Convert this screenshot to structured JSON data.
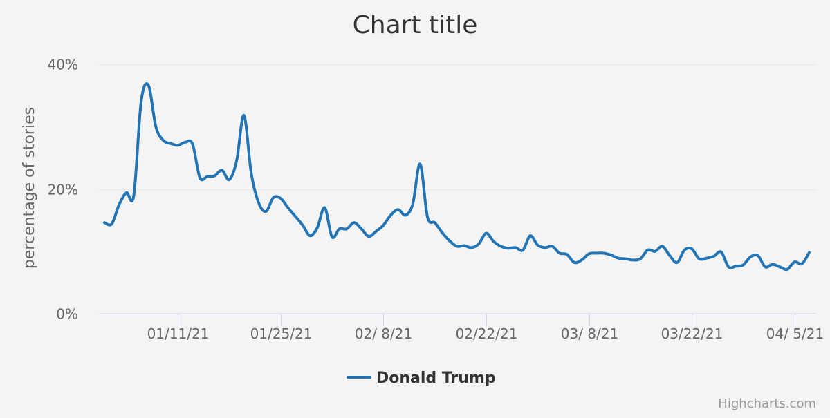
{
  "chart_data": {
    "type": "line",
    "title": "Chart title",
    "ylabel": "percentage of stories",
    "ylim": [
      0,
      40
    ],
    "yticks": [
      0,
      20,
      40
    ],
    "ytick_labels": [
      "0%",
      "20%",
      "40%"
    ],
    "xlim": [
      "2021-01-01",
      "2021-04-07"
    ],
    "xticks": [
      "2021-01-11",
      "2021-01-25",
      "2021-02-08",
      "2021-02-22",
      "2021-03-08",
      "2021-03-22",
      "2021-04-05"
    ],
    "xtick_labels": [
      "01/11/21",
      "01/25/21",
      "02/ 8/21",
      "02/22/21",
      "03/ 8/21",
      "03/22/21",
      "04/ 5/21"
    ],
    "grid": true,
    "legend": "bottom-center",
    "series": [
      {
        "name": "Donald Trump",
        "color": "#2274b5",
        "x": [
          "2021-01-01",
          "2021-01-02",
          "2021-01-03",
          "2021-01-04",
          "2021-01-05",
          "2021-01-06",
          "2021-01-07",
          "2021-01-08",
          "2021-01-09",
          "2021-01-10",
          "2021-01-11",
          "2021-01-12",
          "2021-01-13",
          "2021-01-14",
          "2021-01-15",
          "2021-01-16",
          "2021-01-17",
          "2021-01-18",
          "2021-01-19",
          "2021-01-20",
          "2021-01-21",
          "2021-01-22",
          "2021-01-23",
          "2021-01-24",
          "2021-01-25",
          "2021-01-26",
          "2021-01-27",
          "2021-01-28",
          "2021-01-29",
          "2021-01-30",
          "2021-01-31",
          "2021-02-01",
          "2021-02-02",
          "2021-02-03",
          "2021-02-04",
          "2021-02-05",
          "2021-02-06",
          "2021-02-07",
          "2021-02-08",
          "2021-02-09",
          "2021-02-10",
          "2021-02-11",
          "2021-02-12",
          "2021-02-13",
          "2021-02-14",
          "2021-02-15",
          "2021-02-16",
          "2021-02-17",
          "2021-02-18",
          "2021-02-19",
          "2021-02-20",
          "2021-02-21",
          "2021-02-22",
          "2021-02-23",
          "2021-02-24",
          "2021-02-25",
          "2021-02-26",
          "2021-02-27",
          "2021-02-28",
          "2021-03-01",
          "2021-03-02",
          "2021-03-03",
          "2021-03-04",
          "2021-03-05",
          "2021-03-06",
          "2021-03-07",
          "2021-03-08",
          "2021-03-09",
          "2021-03-10",
          "2021-03-11",
          "2021-03-12",
          "2021-03-13",
          "2021-03-14",
          "2021-03-15",
          "2021-03-16",
          "2021-03-17",
          "2021-03-18",
          "2021-03-19",
          "2021-03-20",
          "2021-03-21",
          "2021-03-22",
          "2021-03-23",
          "2021-03-24",
          "2021-03-25",
          "2021-03-26",
          "2021-03-27",
          "2021-03-28",
          "2021-03-29",
          "2021-03-30",
          "2021-03-31",
          "2021-04-01",
          "2021-04-02",
          "2021-04-03",
          "2021-04-04",
          "2021-04-05",
          "2021-04-06",
          "2021-04-07"
        ],
        "values": [
          14.6,
          14.4,
          17.5,
          19.4,
          19.0,
          34.0,
          36.6,
          30.0,
          27.8,
          27.3,
          27.0,
          27.5,
          27.2,
          21.8,
          22.0,
          22.1,
          23.0,
          21.5,
          24.5,
          31.8,
          22.5,
          17.8,
          16.4,
          18.6,
          18.5,
          17.0,
          15.6,
          14.2,
          12.5,
          13.8,
          17.0,
          12.3,
          13.6,
          13.6,
          14.6,
          13.6,
          12.4,
          13.2,
          14.2,
          15.8,
          16.7,
          15.8,
          17.6,
          24.0,
          15.5,
          14.6,
          13.0,
          11.7,
          10.8,
          10.9,
          10.6,
          11.2,
          12.9,
          11.6,
          10.8,
          10.5,
          10.6,
          10.2,
          12.5,
          11.0,
          10.6,
          10.8,
          9.7,
          9.5,
          8.2,
          8.6,
          9.6,
          9.7,
          9.7,
          9.4,
          8.9,
          8.8,
          8.6,
          8.8,
          10.2,
          10.0,
          10.8,
          9.3,
          8.2,
          10.2,
          10.4,
          8.8,
          8.9,
          9.2,
          9.9,
          7.5,
          7.6,
          7.8,
          9.1,
          9.3,
          7.5,
          7.9,
          7.5,
          7.1,
          8.3,
          8.0,
          9.8
        ]
      }
    ]
  },
  "credits": "Highcharts.com"
}
